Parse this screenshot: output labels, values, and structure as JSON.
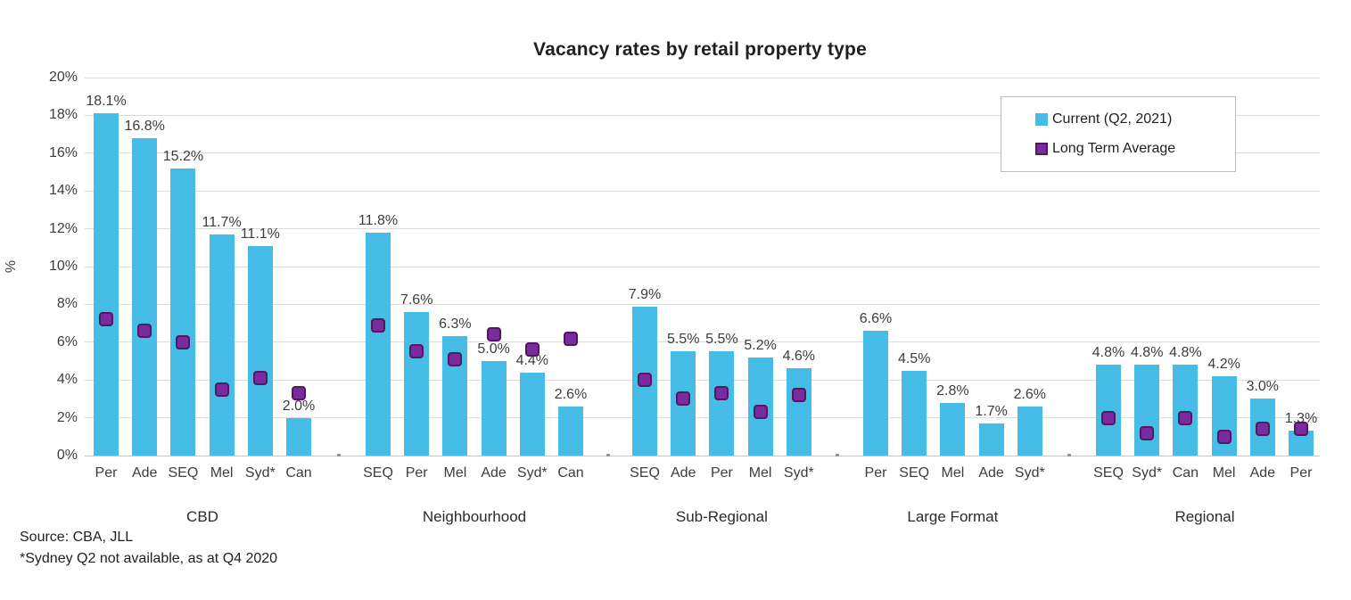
{
  "title": "Vacancy rates by retail property type",
  "y_axis": {
    "label": "%",
    "tick_labels": [
      "0%",
      "2%",
      "4%",
      "6%",
      "8%",
      "10%",
      "12%",
      "14%",
      "16%",
      "18%",
      "20%"
    ]
  },
  "legend": {
    "items": [
      {
        "label": "Current (Q2, 2021)",
        "swatch_color": "#45bde6",
        "swatch_border": "#45bde6"
      },
      {
        "label": "Long Term Average",
        "swatch_color": "#7a2ba0",
        "swatch_border": "#53175f"
      }
    ]
  },
  "footnotes": {
    "source": "Source: CBA, JLL",
    "note": "*Sydney Q2 not available, as at Q4 2020"
  },
  "colors": {
    "bar": "#45bde6",
    "marker_fill": "#7a2ba0",
    "marker_border": "#53175f",
    "gridline": "#dcdcdc",
    "baseline": "#c4c4c4",
    "text": "#3d3d3d",
    "title_text": "#1f1f1f",
    "legend_border": "#bdbdbd",
    "separator_dot": "#8f8f8f"
  },
  "chart_data": {
    "type": "bar",
    "title": "Vacancy rates by retail property type",
    "xlabel": "",
    "ylabel": "%",
    "ylim": [
      0,
      20
    ],
    "ytick_step": 2,
    "grid": true,
    "legend_position": "top-right",
    "series": [
      {
        "name": "Current (Q2, 2021)",
        "style": "bar",
        "color": "#45bde6"
      },
      {
        "name": "Long Term Average",
        "style": "square-marker",
        "color": "#7a2ba0"
      }
    ],
    "groups": [
      {
        "label": "CBD",
        "categories": [
          "Per",
          "Ade",
          "SEQ",
          "Mel",
          "Syd*",
          "Can"
        ],
        "current": [
          18.1,
          16.8,
          15.2,
          11.7,
          11.1,
          2.0
        ],
        "long_term_average": [
          7.2,
          6.6,
          6.0,
          3.5,
          4.1,
          3.3
        ]
      },
      {
        "label": "Neighbourhood",
        "categories": [
          "SEQ",
          "Per",
          "Mel",
          "Ade",
          "Syd*",
          "Can"
        ],
        "current": [
          11.8,
          7.6,
          6.3,
          5.0,
          4.4,
          2.6
        ],
        "long_term_average": [
          6.9,
          5.5,
          5.1,
          6.4,
          5.6,
          6.2
        ]
      },
      {
        "label": "Sub-Regional",
        "categories": [
          "SEQ",
          "Ade",
          "Per",
          "Mel",
          "Syd*"
        ],
        "current": [
          7.9,
          5.5,
          5.5,
          5.2,
          4.6
        ],
        "long_term_average": [
          4.0,
          3.0,
          3.3,
          2.3,
          3.2
        ]
      },
      {
        "label": "Large Format",
        "categories": [
          "Per",
          "SEQ",
          "Mel",
          "Ade",
          "Syd*"
        ],
        "current": [
          6.6,
          4.5,
          2.8,
          1.7,
          2.6
        ],
        "long_term_average": [
          null,
          null,
          null,
          null,
          null
        ]
      },
      {
        "label": "Regional",
        "categories": [
          "SEQ",
          "Syd*",
          "Can",
          "Mel",
          "Ade",
          "Per"
        ],
        "current": [
          4.8,
          4.8,
          4.8,
          4.2,
          3.0,
          1.3
        ],
        "long_term_average": [
          2.0,
          1.2,
          2.0,
          1.0,
          1.4,
          1.4
        ]
      }
    ]
  }
}
